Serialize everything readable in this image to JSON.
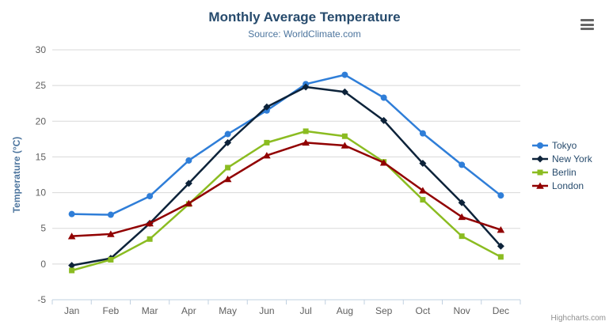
{
  "chart_data": {
    "type": "line",
    "title": "Monthly Average Temperature",
    "subtitle": "Source: WorldClimate.com",
    "xlabel": "",
    "ylabel": "Temperature (°C)",
    "ylim": [
      -5,
      30
    ],
    "ytick_interval": 5,
    "grid": true,
    "legend_position": "right",
    "categories": [
      "Jan",
      "Feb",
      "Mar",
      "Apr",
      "May",
      "Jun",
      "Jul",
      "Aug",
      "Sep",
      "Oct",
      "Nov",
      "Dec"
    ],
    "series": [
      {
        "name": "Tokyo",
        "color": "#2f7ed8",
        "marker": "circle",
        "values": [
          7.0,
          6.9,
          9.5,
          14.5,
          18.2,
          21.5,
          25.2,
          26.5,
          23.3,
          18.3,
          13.9,
          9.6
        ]
      },
      {
        "name": "New York",
        "color": "#0d233a",
        "marker": "diamond",
        "values": [
          -0.2,
          0.8,
          5.7,
          11.3,
          17.0,
          22.0,
          24.8,
          24.1,
          20.1,
          14.1,
          8.6,
          2.5
        ]
      },
      {
        "name": "Berlin",
        "color": "#8bbc21",
        "marker": "square",
        "values": [
          -0.9,
          0.6,
          3.5,
          8.4,
          13.5,
          17.0,
          18.6,
          17.9,
          14.3,
          9.0,
          3.9,
          1.0
        ]
      },
      {
        "name": "London",
        "color": "#910000",
        "marker": "triangle",
        "values": [
          3.9,
          4.2,
          5.7,
          8.5,
          11.9,
          15.2,
          17.0,
          16.6,
          14.2,
          10.3,
          6.6,
          4.8
        ]
      }
    ]
  },
  "colors": {
    "title": "#274b6d",
    "subtitle": "#4d759e",
    "axis_title": "#4d759e",
    "axis_label": "#606060",
    "grid": "#d8d8d8",
    "axis_line": "#c0d0e0",
    "legend_text": "#274b6d",
    "credits": "#909090",
    "background": "#ffffff",
    "export_icon": "#666666"
  },
  "export_menu": {
    "icon": "hamburger-icon"
  },
  "credits": {
    "label": "Highcharts.com"
  }
}
